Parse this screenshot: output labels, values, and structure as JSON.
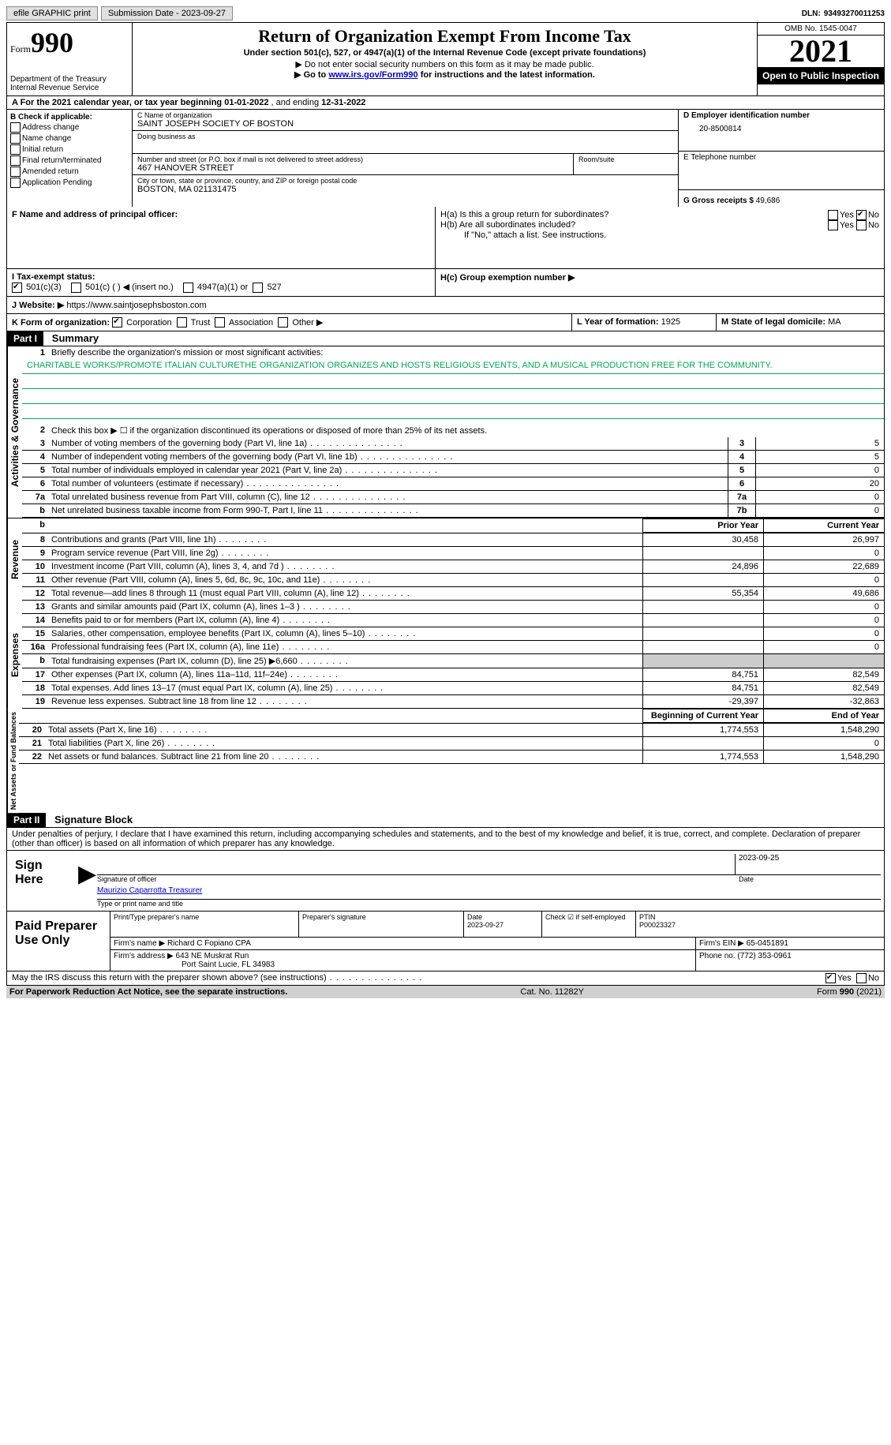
{
  "topbar": {
    "efile": "efile GRAPHIC print",
    "submission": "Submission Date - 2023-09-27",
    "dln_lbl": "DLN:",
    "dln": "93493270011253"
  },
  "header": {
    "form_word": "Form",
    "form_num": "990",
    "dept": "Department of the Treasury",
    "irs": "Internal Revenue Service",
    "title": "Return of Organization Exempt From Income Tax",
    "sub1": "Under section 501(c), 527, or 4947(a)(1) of the Internal Revenue Code (except private foundations)",
    "sub2": "▶ Do not enter social security numbers on this form as it may be made public.",
    "sub3_pre": "▶ Go to ",
    "sub3_link": "www.irs.gov/Form990",
    "sub3_post": " for instructions and the latest information.",
    "omb": "OMB No. 1545-0047",
    "year": "2021",
    "inspect": "Open to Public Inspection"
  },
  "rowA": {
    "text_pre": "A For the 2021 calendar year, or tax year beginning ",
    "begin": "01-01-2022",
    "mid": " , and ending ",
    "end": "12-31-2022"
  },
  "colB": {
    "hdr": "B Check if applicable:",
    "items": [
      "Address change",
      "Name change",
      "Initial return",
      "Final return/terminated",
      "Amended return",
      "Application Pending"
    ]
  },
  "colC": {
    "name_lbl": "C Name of organization",
    "name": "SAINT JOSEPH SOCIETY OF BOSTON",
    "dba_lbl": "Doing business as",
    "dba": "",
    "addr_lbl": "Number and street (or P.O. box if mail is not delivered to street address)",
    "room_lbl": "Room/suite",
    "addr": "467 HANOVER STREET",
    "city_lbl": "City or town, state or province, country, and ZIP or foreign postal code",
    "city": "BOSTON, MA  021131475"
  },
  "colD": {
    "ein_lbl": "D Employer identification number",
    "ein": "20-8500814",
    "tel_lbl": "E Telephone number",
    "tel": "",
    "gross_lbl": "G Gross receipts $",
    "gross": "49,686"
  },
  "rowF": {
    "lbl": "F Name and address of principal officer:",
    "val": ""
  },
  "rowH": {
    "ha": "H(a)  Is this a group return for subordinates?",
    "hb": "H(b)  Are all subordinates included?",
    "hb_note": "If \"No,\" attach a list. See instructions.",
    "hc": "H(c)  Group exemption number ▶",
    "yes": "Yes",
    "no": "No"
  },
  "rowI": {
    "lbl": "I  Tax-exempt status:",
    "o1": "501(c)(3)",
    "o2": "501(c) (  ) ◀ (insert no.)",
    "o3": "4947(a)(1) or",
    "o4": "527"
  },
  "rowJ": {
    "lbl": "J  Website: ▶",
    "val": "https://www.saintjosephsboston.com"
  },
  "rowK": {
    "lbl": "K Form of organization:",
    "o1": "Corporation",
    "o2": "Trust",
    "o3": "Association",
    "o4": "Other ▶"
  },
  "rowL": {
    "lbl": "L Year of formation:",
    "val": "1925"
  },
  "rowM": {
    "lbl": "M State of legal domicile:",
    "val": "MA"
  },
  "part1": {
    "num": "Part I",
    "title": "Summary"
  },
  "summary": {
    "q1": "Briefly describe the organization's mission or most significant activities:",
    "mission": "CHARITABLE WORKS/PROMOTE ITALIAN CULTURETHE ORGANIZATION ORGANIZES AND HOSTS RELIGIOUS EVENTS, AND A MUSICAL PRODUCTION FREE FOR THE COMMUNITY.",
    "q2": "Check this box ▶ ☐ if the organization discontinued its operations or disposed of more than 25% of its net assets.",
    "lines_ag": [
      {
        "n": "3",
        "t": "Number of voting members of the governing body (Part VI, line 1a)",
        "box": "3",
        "v": "5"
      },
      {
        "n": "4",
        "t": "Number of independent voting members of the governing body (Part VI, line 1b)",
        "box": "4",
        "v": "5"
      },
      {
        "n": "5",
        "t": "Total number of individuals employed in calendar year 2021 (Part V, line 2a)",
        "box": "5",
        "v": "0"
      },
      {
        "n": "6",
        "t": "Total number of volunteers (estimate if necessary)",
        "box": "6",
        "v": "20"
      },
      {
        "n": "7a",
        "t": "Total unrelated business revenue from Part VIII, column (C), line 12",
        "box": "7a",
        "v": "0"
      },
      {
        "n": "b",
        "t": "Net unrelated business taxable income from Form 990-T, Part I, line 11",
        "box": "7b",
        "v": "0"
      }
    ],
    "col_prior": "Prior Year",
    "col_curr": "Current Year",
    "revenue": [
      {
        "n": "8",
        "t": "Contributions and grants (Part VIII, line 1h)",
        "p": "30,458",
        "c": "26,997"
      },
      {
        "n": "9",
        "t": "Program service revenue (Part VIII, line 2g)",
        "p": "",
        "c": "0"
      },
      {
        "n": "10",
        "t": "Investment income (Part VIII, column (A), lines 3, 4, and 7d )",
        "p": "24,896",
        "c": "22,689"
      },
      {
        "n": "11",
        "t": "Other revenue (Part VIII, column (A), lines 5, 6d, 8c, 9c, 10c, and 11e)",
        "p": "",
        "c": "0"
      },
      {
        "n": "12",
        "t": "Total revenue—add lines 8 through 11 (must equal Part VIII, column (A), line 12)",
        "p": "55,354",
        "c": "49,686"
      }
    ],
    "expenses": [
      {
        "n": "13",
        "t": "Grants and similar amounts paid (Part IX, column (A), lines 1–3 )",
        "p": "",
        "c": "0"
      },
      {
        "n": "14",
        "t": "Benefits paid to or for members (Part IX, column (A), line 4)",
        "p": "",
        "c": "0"
      },
      {
        "n": "15",
        "t": "Salaries, other compensation, employee benefits (Part IX, column (A), lines 5–10)",
        "p": "",
        "c": "0"
      },
      {
        "n": "16a",
        "t": "Professional fundraising fees (Part IX, column (A), line 11e)",
        "p": "",
        "c": "0"
      },
      {
        "n": "b",
        "t": "Total fundraising expenses (Part IX, column (D), line 25) ▶6,660",
        "p": "shade",
        "c": "shade"
      },
      {
        "n": "17",
        "t": "Other expenses (Part IX, column (A), lines 11a–11d, 11f–24e)",
        "p": "84,751",
        "c": "82,549"
      },
      {
        "n": "18",
        "t": "Total expenses. Add lines 13–17 (must equal Part IX, column (A), line 25)",
        "p": "84,751",
        "c": "82,549"
      },
      {
        "n": "19",
        "t": "Revenue less expenses. Subtract line 18 from line 12",
        "p": "-29,397",
        "c": "-32,863"
      }
    ],
    "col_begin": "Beginning of Current Year",
    "col_end": "End of Year",
    "netassets": [
      {
        "n": "20",
        "t": "Total assets (Part X, line 16)",
        "p": "1,774,553",
        "c": "1,548,290"
      },
      {
        "n": "21",
        "t": "Total liabilities (Part X, line 26)",
        "p": "",
        "c": "0"
      },
      {
        "n": "22",
        "t": "Net assets or fund balances. Subtract line 21 from line 20",
        "p": "1,774,553",
        "c": "1,548,290"
      }
    ],
    "vtab_ag": "Activities & Governance",
    "vtab_rev": "Revenue",
    "vtab_exp": "Expenses",
    "vtab_net": "Net Assets or Fund Balances"
  },
  "part2": {
    "num": "Part II",
    "title": "Signature Block"
  },
  "sig": {
    "decl": "Under penalties of perjury, I declare that I have examined this return, including accompanying schedules and statements, and to the best of my knowledge and belief, it is true, correct, and complete. Declaration of preparer (other than officer) is based on all information of which preparer has any knowledge.",
    "sign_here": "Sign Here",
    "sig_officer": "Signature of officer",
    "sig_date": "2023-09-25",
    "date_lbl": "Date",
    "name": "Maurizio Caparrotta  Treasurer",
    "name_lbl": "Type or print name and title",
    "paid": "Paid Preparer Use Only",
    "p_name_lbl": "Print/Type preparer's name",
    "p_name": "",
    "p_sig_lbl": "Preparer's signature",
    "p_date_lbl": "Date",
    "p_date": "2023-09-27",
    "p_self": "Check ☑ if self-employed",
    "ptin_lbl": "PTIN",
    "ptin": "P00023327",
    "firm_lbl": "Firm's name    ▶",
    "firm": "Richard C Fopiano CPA",
    "ein_lbl": "Firm's EIN ▶",
    "ein": "65-0451891",
    "addr_lbl": "Firm's address ▶",
    "addr1": "643 NE Muskrat Run",
    "addr2": "Port Saint Lucie, FL  34983",
    "phone_lbl": "Phone no.",
    "phone": "(772) 353-0961",
    "discuss": "May the IRS discuss this return with the preparer shown above? (see instructions)",
    "yes": "Yes",
    "no": "No"
  },
  "footer": {
    "pra": "For Paperwork Reduction Act Notice, see the separate instructions.",
    "cat": "Cat. No. 11282Y",
    "form": "Form 990 (2021)"
  }
}
